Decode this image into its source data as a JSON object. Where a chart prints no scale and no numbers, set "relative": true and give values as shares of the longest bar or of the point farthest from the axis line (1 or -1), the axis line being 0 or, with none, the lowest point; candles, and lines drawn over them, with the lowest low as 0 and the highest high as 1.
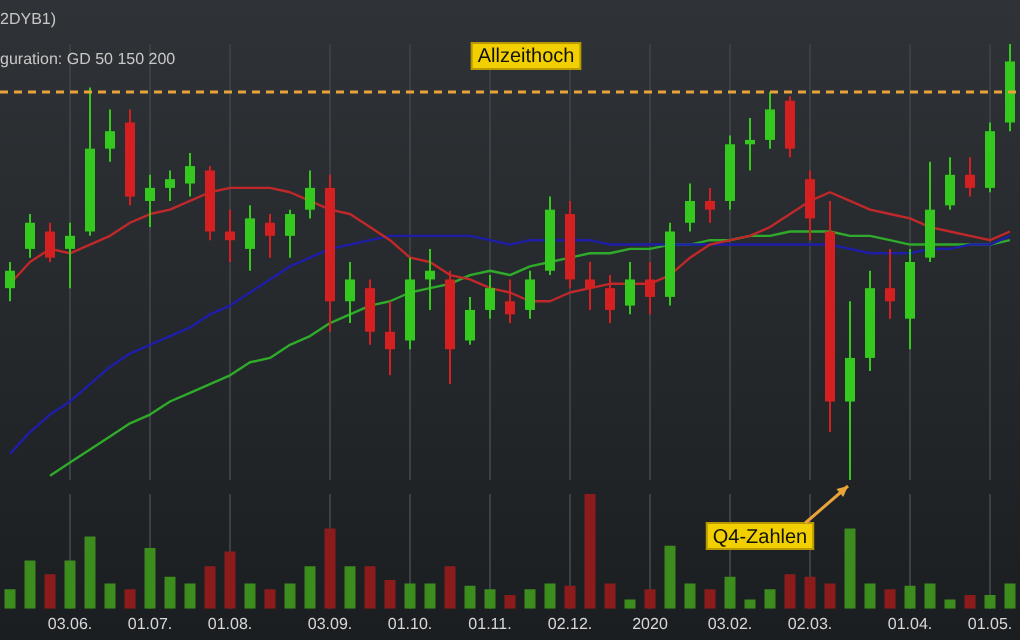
{
  "chart_data": [
    {
      "type": "candlestick",
      "title": "2DYB1)",
      "subtitle": "guration: GD 50 150 200",
      "relative": true,
      "grid": "x",
      "legend": false,
      "tick_labels": false,
      "categories": [
        null,
        null,
        null,
        "03.06.",
        null,
        null,
        null,
        "01.07.",
        null,
        null,
        null,
        "01.08.",
        null,
        null,
        null,
        null,
        "03.09.",
        null,
        null,
        null,
        "01.10.",
        null,
        null,
        null,
        "01.11.",
        null,
        null,
        null,
        "02.12.",
        null,
        null,
        null,
        "2020",
        null,
        null,
        null,
        "03.02.",
        null,
        null,
        null,
        "02.03.",
        null,
        null,
        null,
        null,
        "01.04.",
        null,
        null,
        null,
        "01.05.",
        null
      ],
      "ohlc": [
        [
          0.44,
          0.5,
          0.41,
          0.48
        ],
        [
          0.53,
          0.61,
          0.51,
          0.59
        ],
        [
          0.57,
          0.59,
          0.5,
          0.51
        ],
        [
          0.53,
          0.59,
          0.44,
          0.56
        ],
        [
          0.57,
          0.9,
          0.56,
          0.76
        ],
        [
          0.76,
          0.85,
          0.73,
          0.8
        ],
        [
          0.82,
          0.85,
          0.63,
          0.65
        ],
        [
          0.64,
          0.7,
          0.58,
          0.67
        ],
        [
          0.67,
          0.71,
          0.64,
          0.69
        ],
        [
          0.68,
          0.75,
          0.65,
          0.72
        ],
        [
          0.71,
          0.72,
          0.55,
          0.57
        ],
        [
          0.57,
          0.62,
          0.5,
          0.55
        ],
        [
          0.53,
          0.63,
          0.48,
          0.6
        ],
        [
          0.59,
          0.61,
          0.51,
          0.56
        ],
        [
          0.56,
          0.62,
          0.51,
          0.61
        ],
        [
          0.62,
          0.71,
          0.6,
          0.67
        ],
        [
          0.67,
          0.7,
          0.34,
          0.41
        ],
        [
          0.41,
          0.5,
          0.36,
          0.46
        ],
        [
          0.44,
          0.46,
          0.31,
          0.34
        ],
        [
          0.34,
          0.41,
          0.24,
          0.3
        ],
        [
          0.32,
          0.51,
          0.3,
          0.46
        ],
        [
          0.46,
          0.53,
          0.39,
          0.48
        ],
        [
          0.46,
          0.48,
          0.22,
          0.3
        ],
        [
          0.32,
          0.42,
          0.31,
          0.39
        ],
        [
          0.39,
          0.47,
          0.37,
          0.44
        ],
        [
          0.41,
          0.46,
          0.36,
          0.38
        ],
        [
          0.39,
          0.48,
          0.37,
          0.46
        ],
        [
          0.48,
          0.65,
          0.47,
          0.62
        ],
        [
          0.61,
          0.64,
          0.44,
          0.46
        ],
        [
          0.46,
          0.5,
          0.39,
          0.44
        ],
        [
          0.44,
          0.47,
          0.36,
          0.39
        ],
        [
          0.4,
          0.5,
          0.38,
          0.46
        ],
        [
          0.46,
          0.5,
          0.38,
          0.42
        ],
        [
          0.42,
          0.59,
          0.4,
          0.57
        ],
        [
          0.59,
          0.68,
          0.57,
          0.64
        ],
        [
          0.64,
          0.67,
          0.59,
          0.62
        ],
        [
          0.64,
          0.79,
          0.62,
          0.77
        ],
        [
          0.77,
          0.83,
          0.71,
          0.78
        ],
        [
          0.78,
          0.89,
          0.76,
          0.85
        ],
        [
          0.87,
          0.88,
          0.74,
          0.76
        ],
        [
          0.69,
          0.71,
          0.55,
          0.6
        ],
        [
          0.57,
          0.64,
          0.11,
          0.18
        ],
        [
          0.18,
          0.41,
          0,
          0.28
        ],
        [
          0.28,
          0.48,
          0.25,
          0.44
        ],
        [
          0.44,
          0.53,
          0.37,
          0.41
        ],
        [
          0.37,
          0.53,
          0.3,
          0.5
        ],
        [
          0.51,
          0.73,
          0.5,
          0.62
        ],
        [
          0.63,
          0.74,
          0.62,
          0.7
        ],
        [
          0.7,
          0.74,
          0.65,
          0.67
        ],
        [
          0.67,
          0.82,
          0.66,
          0.8
        ],
        [
          0.82,
          1,
          0.8,
          0.96
        ]
      ],
      "series": [
        {
          "type": "line",
          "color": "#c0282a",
          "values": [
            0.45,
            0.5,
            0.53,
            0.52,
            0.54,
            0.56,
            0.59,
            0.61,
            0.62,
            0.64,
            0.66,
            0.67,
            0.67,
            0.67,
            0.66,
            0.64,
            0.62,
            0.61,
            0.58,
            0.55,
            0.51,
            0.5,
            0.47,
            0.46,
            0.44,
            0.43,
            0.41,
            0.41,
            0.43,
            0.44,
            0.45,
            0.45,
            0.45,
            0.47,
            0.51,
            0.54,
            0.55,
            0.56,
            0.58,
            0.61,
            0.64,
            0.66,
            0.64,
            0.62,
            0.61,
            0.6,
            0.58,
            0.57,
            0.56,
            0.55,
            0.57
          ]
        },
        {
          "type": "line",
          "color": "#1e1ea8",
          "values": [
            0.06,
            0.11,
            0.15,
            0.18,
            0.22,
            0.26,
            0.29,
            0.31,
            0.33,
            0.35,
            0.38,
            0.4,
            0.43,
            0.46,
            0.49,
            0.51,
            0.53,
            0.54,
            0.55,
            0.56,
            0.56,
            0.56,
            0.56,
            0.56,
            0.55,
            0.54,
            0.55,
            0.55,
            0.55,
            0.55,
            0.54,
            0.54,
            0.54,
            0.54,
            0.54,
            0.54,
            0.54,
            0.54,
            0.54,
            0.54,
            0.54,
            0.54,
            0.53,
            0.52,
            0.52,
            0.52,
            0.53,
            0.53,
            0.54,
            0.54,
            0.56
          ]
        },
        {
          "type": "line",
          "color": "#2faa2a",
          "values": [
            null,
            null,
            0.01,
            0.04,
            0.07,
            0.1,
            0.13,
            0.15,
            0.18,
            0.2,
            0.22,
            0.24,
            0.27,
            0.28,
            0.31,
            0.33,
            0.36,
            0.38,
            0.4,
            0.41,
            0.43,
            0.44,
            0.45,
            0.47,
            0.48,
            0.47,
            0.49,
            0.5,
            0.51,
            0.52,
            0.52,
            0.53,
            0.53,
            0.54,
            0.54,
            0.55,
            0.55,
            0.56,
            0.56,
            0.57,
            0.57,
            0.57,
            0.56,
            0.56,
            0.55,
            0.54,
            0.54,
            0.54,
            0.54,
            0.54,
            0.55
          ]
        }
      ],
      "ref_lines": [
        {
          "axis": "y",
          "value": 0.89,
          "label": "Allzeithoch",
          "color": "#e8a33a",
          "line_style": "dashed"
        }
      ],
      "annotations": [
        "Q4-Zahlen"
      ]
    },
    {
      "type": "bar",
      "relative": true,
      "grid": "x",
      "legend": false,
      "tick_labels": "x",
      "categories": [
        null,
        null,
        null,
        "03.06.",
        null,
        null,
        null,
        "01.07.",
        null,
        null,
        null,
        "01.08.",
        null,
        null,
        null,
        null,
        "03.09.",
        null,
        null,
        null,
        "01.10.",
        null,
        null,
        null,
        "01.11.",
        null,
        null,
        null,
        "02.12.",
        null,
        null,
        null,
        "2020",
        null,
        null,
        null,
        "03.02.",
        null,
        null,
        null,
        "02.03.",
        null,
        null,
        null,
        null,
        "01.04.",
        null,
        null,
        null,
        "01.05.",
        null
      ],
      "values": [
        0.17,
        0.42,
        0.3,
        0.42,
        0.63,
        0.22,
        0.17,
        0.53,
        0.28,
        0.22,
        0.37,
        0.5,
        0.22,
        0.17,
        0.22,
        0.37,
        0.7,
        0.37,
        0.37,
        0.25,
        0.22,
        0.22,
        0.37,
        0.2,
        0.17,
        0.12,
        0.17,
        0.22,
        0.2,
        1,
        0.22,
        0.08,
        0.17,
        0.55,
        0.22,
        0.17,
        0.28,
        0.08,
        0.17,
        0.3,
        0.28,
        0.22,
        0.7,
        0.22,
        0.17,
        0.2,
        0.22,
        0.08,
        0.12,
        0.12,
        0.22
      ],
      "colors": [
        "#3c8c1e",
        "#3c8c1e",
        "#8c1c1c",
        "#3c8c1e",
        "#3c8c1e",
        "#3c8c1e",
        "#8c1c1c",
        "#3c8c1e",
        "#3c8c1e",
        "#3c8c1e",
        "#8c1c1c",
        "#8c1c1c",
        "#3c8c1e",
        "#8c1c1c",
        "#3c8c1e",
        "#3c8c1e",
        "#8c1c1c",
        "#3c8c1e",
        "#8c1c1c",
        "#8c1c1c",
        "#3c8c1e",
        "#3c8c1e",
        "#8c1c1c",
        "#3c8c1e",
        "#3c8c1e",
        "#8c1c1c",
        "#3c8c1e",
        "#3c8c1e",
        "#8c1c1c",
        "#8c1c1c",
        "#8c1c1c",
        "#3c8c1e",
        "#8c1c1c",
        "#3c8c1e",
        "#3c8c1e",
        "#8c1c1c",
        "#3c8c1e",
        "#3c8c1e",
        "#3c8c1e",
        "#8c1c1c",
        "#8c1c1c",
        "#8c1c1c",
        "#3c8c1e",
        "#3c8c1e",
        "#8c1c1c",
        "#3c8c1e",
        "#3c8c1e",
        "#3c8c1e",
        "#8c1c1c",
        "#3c8c1e",
        "#3c8c1e"
      ]
    }
  ]
}
